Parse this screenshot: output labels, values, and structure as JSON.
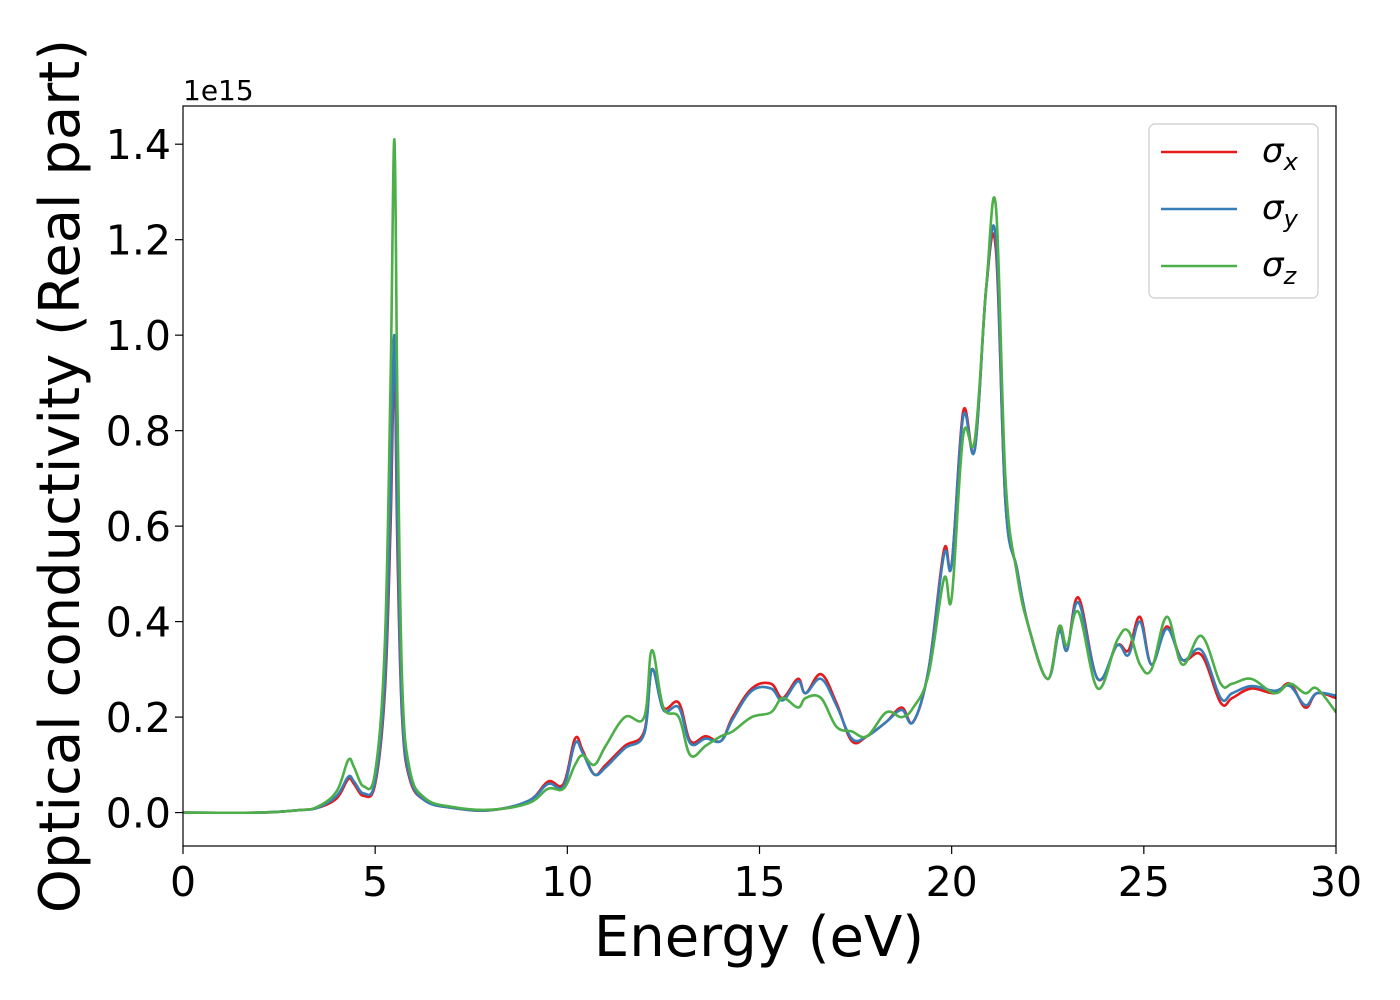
{
  "chart_data": {
    "type": "line",
    "title": "",
    "xlabel": "Energy (eV)",
    "ylabel": "Optical conductivity (Real part)",
    "y_offset_text": "1e15",
    "y_scale_factor": 1000000000000000.0,
    "xlim": [
      0,
      30
    ],
    "ylim": [
      -0.07,
      1.48
    ],
    "x_ticks": [
      0,
      5,
      10,
      15,
      20,
      25,
      30
    ],
    "x_tick_labels": [
      "0",
      "5",
      "10",
      "15",
      "20",
      "25",
      "30"
    ],
    "y_ticks": [
      0.0,
      0.2,
      0.4,
      0.6,
      0.8,
      1.0,
      1.2,
      1.4
    ],
    "y_tick_labels": [
      "0.0",
      "0.2",
      "0.4",
      "0.6",
      "0.8",
      "1.0",
      "1.2",
      "1.4"
    ],
    "grid": false,
    "legend_position": "top-right",
    "series": [
      {
        "name": "σx",
        "symbol": "σ",
        "subscript": "x",
        "color": "#e41a1c",
        "x": [
          0,
          2,
          3,
          3.5,
          4.0,
          4.3,
          4.45,
          4.7,
          5.0,
          5.25,
          5.4,
          5.5,
          5.58,
          5.7,
          5.9,
          6.3,
          7,
          8,
          9,
          9.5,
          9.9,
          10.2,
          10.4,
          10.7,
          11,
          11.5,
          12,
          12.2,
          12.5,
          12.9,
          13.2,
          13.6,
          14,
          14.3,
          14.8,
          15.3,
          15.6,
          16,
          16.2,
          16.6,
          17,
          17.4,
          17.8,
          18.3,
          18.7,
          19.0,
          19.4,
          19.8,
          20.0,
          20.3,
          20.6,
          20.9,
          21.15,
          21.4,
          21.7,
          22.0,
          22.5,
          22.8,
          23.0,
          23.3,
          23.8,
          24.3,
          24.6,
          24.9,
          25.2,
          25.6,
          26.0,
          26.5,
          27,
          27.3,
          27.8,
          28.4,
          28.8,
          29.2,
          29.5,
          30
        ],
        "y": [
          0.0,
          0.0,
          0.005,
          0.01,
          0.03,
          0.07,
          0.06,
          0.035,
          0.06,
          0.25,
          0.6,
          0.94,
          0.55,
          0.2,
          0.07,
          0.025,
          0.01,
          0.005,
          0.025,
          0.065,
          0.06,
          0.155,
          0.13,
          0.08,
          0.1,
          0.14,
          0.17,
          0.3,
          0.22,
          0.23,
          0.15,
          0.16,
          0.15,
          0.2,
          0.26,
          0.27,
          0.24,
          0.28,
          0.25,
          0.29,
          0.23,
          0.15,
          0.16,
          0.19,
          0.22,
          0.19,
          0.3,
          0.55,
          0.52,
          0.84,
          0.76,
          1.1,
          1.18,
          0.65,
          0.51,
          0.39,
          0.28,
          0.39,
          0.34,
          0.45,
          0.28,
          0.35,
          0.34,
          0.41,
          0.31,
          0.39,
          0.32,
          0.33,
          0.23,
          0.24,
          0.26,
          0.25,
          0.27,
          0.22,
          0.25,
          0.24
        ]
      },
      {
        "name": "σy",
        "symbol": "σ",
        "subscript": "y",
        "color": "#377eb8",
        "x": [
          0,
          2,
          3,
          3.5,
          4.0,
          4.3,
          4.45,
          4.7,
          5.0,
          5.25,
          5.4,
          5.5,
          5.58,
          5.7,
          5.9,
          6.3,
          7,
          8,
          9,
          9.5,
          9.9,
          10.2,
          10.4,
          10.7,
          11,
          11.5,
          12,
          12.2,
          12.5,
          12.9,
          13.2,
          13.6,
          14,
          14.3,
          14.8,
          15.3,
          15.6,
          16,
          16.2,
          16.6,
          17,
          17.4,
          17.8,
          18.3,
          18.7,
          19.0,
          19.4,
          19.8,
          20.0,
          20.3,
          20.6,
          20.9,
          21.15,
          21.4,
          21.7,
          22.0,
          22.5,
          22.8,
          23.0,
          23.3,
          23.8,
          24.3,
          24.6,
          24.9,
          25.2,
          25.6,
          26.0,
          26.5,
          27,
          27.3,
          27.8,
          28.4,
          28.8,
          29.2,
          29.5,
          30
        ],
        "y": [
          0.0,
          0.0,
          0.005,
          0.01,
          0.035,
          0.075,
          0.065,
          0.04,
          0.065,
          0.27,
          0.65,
          1.0,
          0.6,
          0.21,
          0.075,
          0.025,
          0.01,
          0.005,
          0.025,
          0.06,
          0.055,
          0.145,
          0.125,
          0.08,
          0.095,
          0.135,
          0.165,
          0.3,
          0.215,
          0.22,
          0.145,
          0.155,
          0.15,
          0.195,
          0.255,
          0.26,
          0.235,
          0.275,
          0.25,
          0.28,
          0.225,
          0.155,
          0.16,
          0.19,
          0.215,
          0.19,
          0.3,
          0.54,
          0.52,
          0.83,
          0.76,
          1.1,
          1.2,
          0.65,
          0.51,
          0.39,
          0.28,
          0.38,
          0.34,
          0.44,
          0.28,
          0.35,
          0.33,
          0.4,
          0.31,
          0.385,
          0.32,
          0.34,
          0.24,
          0.25,
          0.265,
          0.255,
          0.265,
          0.225,
          0.25,
          0.245
        ]
      },
      {
        "name": "σz",
        "symbol": "σ",
        "subscript": "z",
        "color": "#4daf4a",
        "x": [
          0,
          2,
          3,
          3.5,
          4.0,
          4.3,
          4.45,
          4.7,
          5.0,
          5.25,
          5.4,
          5.5,
          5.58,
          5.7,
          5.9,
          6.3,
          7,
          8,
          9,
          9.5,
          9.9,
          10.2,
          10.4,
          10.7,
          11,
          11.5,
          12,
          12.2,
          12.5,
          12.9,
          13.2,
          13.6,
          14,
          14.3,
          14.8,
          15.3,
          15.6,
          16,
          16.2,
          16.6,
          17,
          17.4,
          17.8,
          18.3,
          18.7,
          19.0,
          19.4,
          19.8,
          20.0,
          20.3,
          20.6,
          20.9,
          21.15,
          21.4,
          21.7,
          22.0,
          22.5,
          22.8,
          23.0,
          23.3,
          23.8,
          24.3,
          24.6,
          24.9,
          25.2,
          25.6,
          26.0,
          26.5,
          27,
          27.3,
          27.8,
          28.4,
          28.8,
          29.2,
          29.5,
          30
        ],
        "y": [
          0.0,
          0.0,
          0.005,
          0.012,
          0.045,
          0.11,
          0.095,
          0.055,
          0.085,
          0.35,
          0.9,
          1.41,
          0.85,
          0.28,
          0.09,
          0.03,
          0.012,
          0.006,
          0.02,
          0.05,
          0.05,
          0.1,
          0.12,
          0.1,
          0.14,
          0.2,
          0.2,
          0.34,
          0.22,
          0.2,
          0.12,
          0.14,
          0.16,
          0.17,
          0.2,
          0.21,
          0.24,
          0.22,
          0.24,
          0.24,
          0.18,
          0.17,
          0.16,
          0.21,
          0.2,
          0.22,
          0.29,
          0.49,
          0.45,
          0.79,
          0.78,
          1.1,
          1.27,
          0.7,
          0.5,
          0.39,
          0.28,
          0.39,
          0.35,
          0.42,
          0.26,
          0.36,
          0.38,
          0.31,
          0.3,
          0.41,
          0.31,
          0.37,
          0.27,
          0.27,
          0.28,
          0.25,
          0.27,
          0.25,
          0.26,
          0.21
        ]
      }
    ]
  }
}
